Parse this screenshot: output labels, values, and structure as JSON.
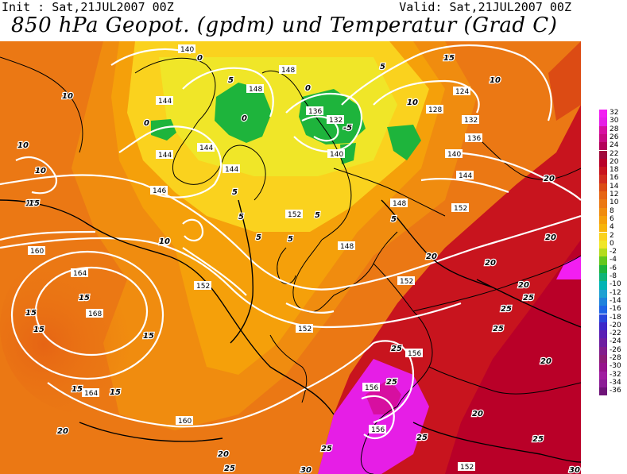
{
  "header": {
    "init_label": "Init : Sat,21JUL2007 00Z",
    "valid_label": "Valid: Sat,21JUL2007 00Z",
    "title": "850 hPa Geopot. (gpdm) und Temperatur (Grad C)"
  },
  "legend": {
    "ticks": [
      "32",
      "30",
      "28",
      "26",
      "24",
      "22",
      "20",
      "18",
      "16",
      "14",
      "12",
      "10",
      "8",
      "6",
      "4",
      "2",
      "0",
      "-2",
      "-4",
      "-6",
      "-8",
      "-10",
      "-12",
      "-14",
      "-16",
      "-18",
      "-20",
      "-22",
      "-24",
      "-26",
      "-28",
      "-30",
      "-32",
      "-34",
      "-36"
    ],
    "colors": [
      "#f21ef2",
      "#e61ee6",
      "#d70fa0",
      "#c80a82",
      "#b4005a",
      "#a00a3c",
      "#b90028",
      "#c8141e",
      "#d22d1e",
      "#dc4b14",
      "#e66414",
      "#eb7814",
      "#f08c0f",
      "#f5a00a",
      "#f7b40a",
      "#fad21e",
      "#f0e628",
      "#b4dc1e",
      "#64c81e",
      "#1eb43c",
      "#0fb478",
      "#00b4b4",
      "#1ea0d2",
      "#1e82dc",
      "#1e64e6",
      "#2846dc",
      "#3c28c8",
      "#5a1eb4",
      "#6e1ea0",
      "#821e8c",
      "#8c1e78",
      "#96148c",
      "#a01ea0",
      "#8c1e96",
      "#6e1478"
    ]
  },
  "map": {
    "geopotential_labels": [
      "140",
      "148",
      "144",
      "148",
      "136",
      "132",
      "124",
      "128",
      "132",
      "136",
      "140",
      "144",
      "144",
      "144",
      "140",
      "144",
      "148",
      "152",
      "152",
      "146",
      "152",
      "148",
      "152",
      "160",
      "164",
      "168",
      "164",
      "160",
      "152",
      "156",
      "156",
      "156",
      "152"
    ],
    "temperature_labels": [
      "10",
      "10",
      "10",
      "10",
      "15",
      "5",
      "0",
      "0",
      "0",
      "5",
      "0",
      "-5",
      "5",
      "5",
      "10",
      "15",
      "10",
      "5",
      "5",
      "5",
      "5",
      "10",
      "15",
      "15",
      "15",
      "15",
      "15",
      "15",
      "15",
      "20",
      "20",
      "20",
      "20",
      "20",
      "20",
      "25",
      "25",
      "25",
      "20",
      "20",
      "20",
      "25",
      "25",
      "25",
      "25",
      "25",
      "30",
      "30",
      "25"
    ],
    "colors": {
      "warm_orange": "#eb7814",
      "orange": "#f08c0f",
      "yellow_orange": "#f5a00a",
      "yellow": "#fad21e",
      "lime": "#f0e628",
      "green": "#1eb43c",
      "red": "#c8141e",
      "dark_red": "#b90028",
      "magenta": "#e61ee6"
    }
  }
}
